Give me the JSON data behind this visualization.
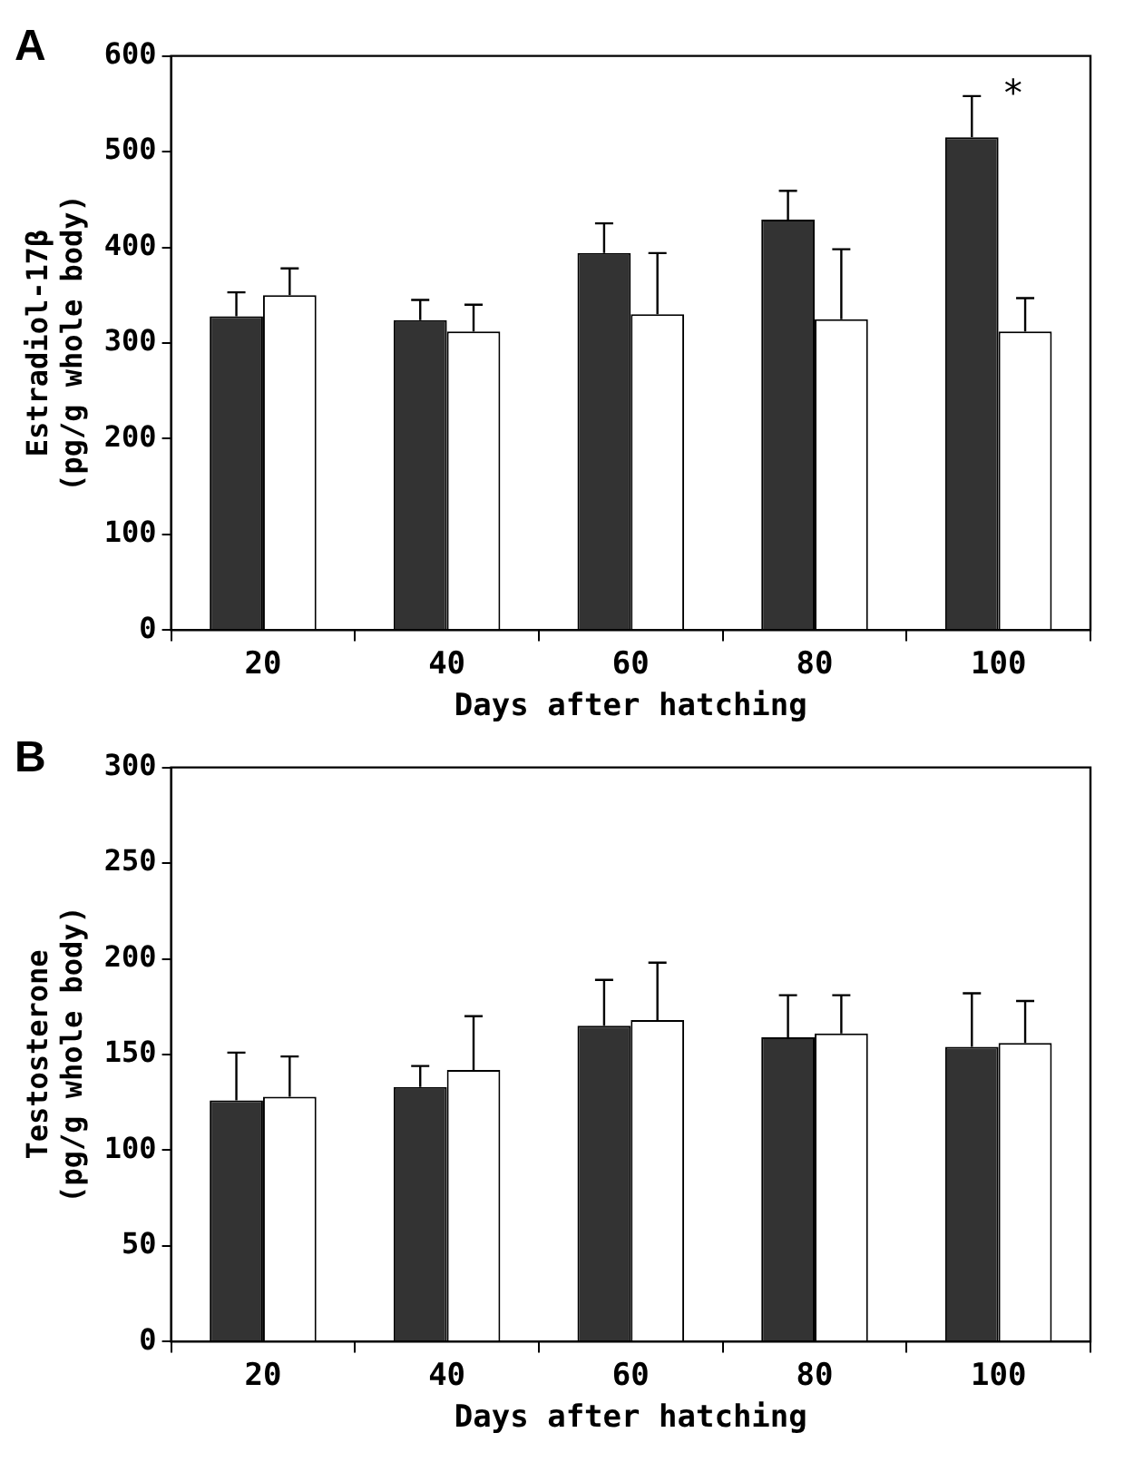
{
  "chart_data": [
    {
      "type": "bar",
      "title": "A",
      "xlabel": "Days after hatching",
      "ylabel": "Estradiol-17β\n(pg/g whole body)",
      "categories": [
        "20",
        "40",
        "60",
        "80",
        "100"
      ],
      "series": [
        {
          "color": "#333333",
          "values": [
            328,
            324,
            394,
            429,
            515
          ],
          "errors": [
            [
              328,
              353
            ],
            [
              324,
              345
            ],
            [
              394,
              425
            ],
            [
              429,
              459
            ],
            [
              515,
              558
            ]
          ]
        },
        {
          "color": "#ffffff",
          "values": [
            350,
            312,
            330,
            325,
            312
          ],
          "errors": [
            [
              350,
              378
            ],
            [
              312,
              340
            ],
            [
              330,
              394
            ],
            [
              325,
              398
            ],
            [
              312,
              347
            ]
          ]
        }
      ],
      "ylim": [
        0,
        600
      ],
      "yticks": [
        0,
        100,
        200,
        300,
        400,
        500,
        600
      ],
      "grid": false,
      "legend": false,
      "annotations": [
        "*"
      ]
    },
    {
      "type": "bar",
      "title": "B",
      "xlabel": "Days after hatching",
      "ylabel": "Testosterone\n(pg/g whole body)",
      "categories": [
        "20",
        "40",
        "60",
        "80",
        "100"
      ],
      "series": [
        {
          "color": "#333333",
          "values": [
            126,
            133,
            165,
            159,
            154
          ],
          "errors": [
            [
              126,
              151
            ],
            [
              133,
              144
            ],
            [
              165,
              189
            ],
            [
              159,
              181
            ],
            [
              154,
              182
            ]
          ]
        },
        {
          "color": "#ffffff",
          "values": [
            128,
            142,
            168,
            161,
            156
          ],
          "errors": [
            [
              128,
              149
            ],
            [
              142,
              170
            ],
            [
              168,
              198
            ],
            [
              161,
              181
            ],
            [
              156,
              178
            ]
          ]
        }
      ],
      "ylim": [
        0,
        300
      ],
      "yticks": [
        0,
        50,
        100,
        150,
        200,
        250,
        300
      ],
      "grid": false,
      "legend": false
    }
  ]
}
